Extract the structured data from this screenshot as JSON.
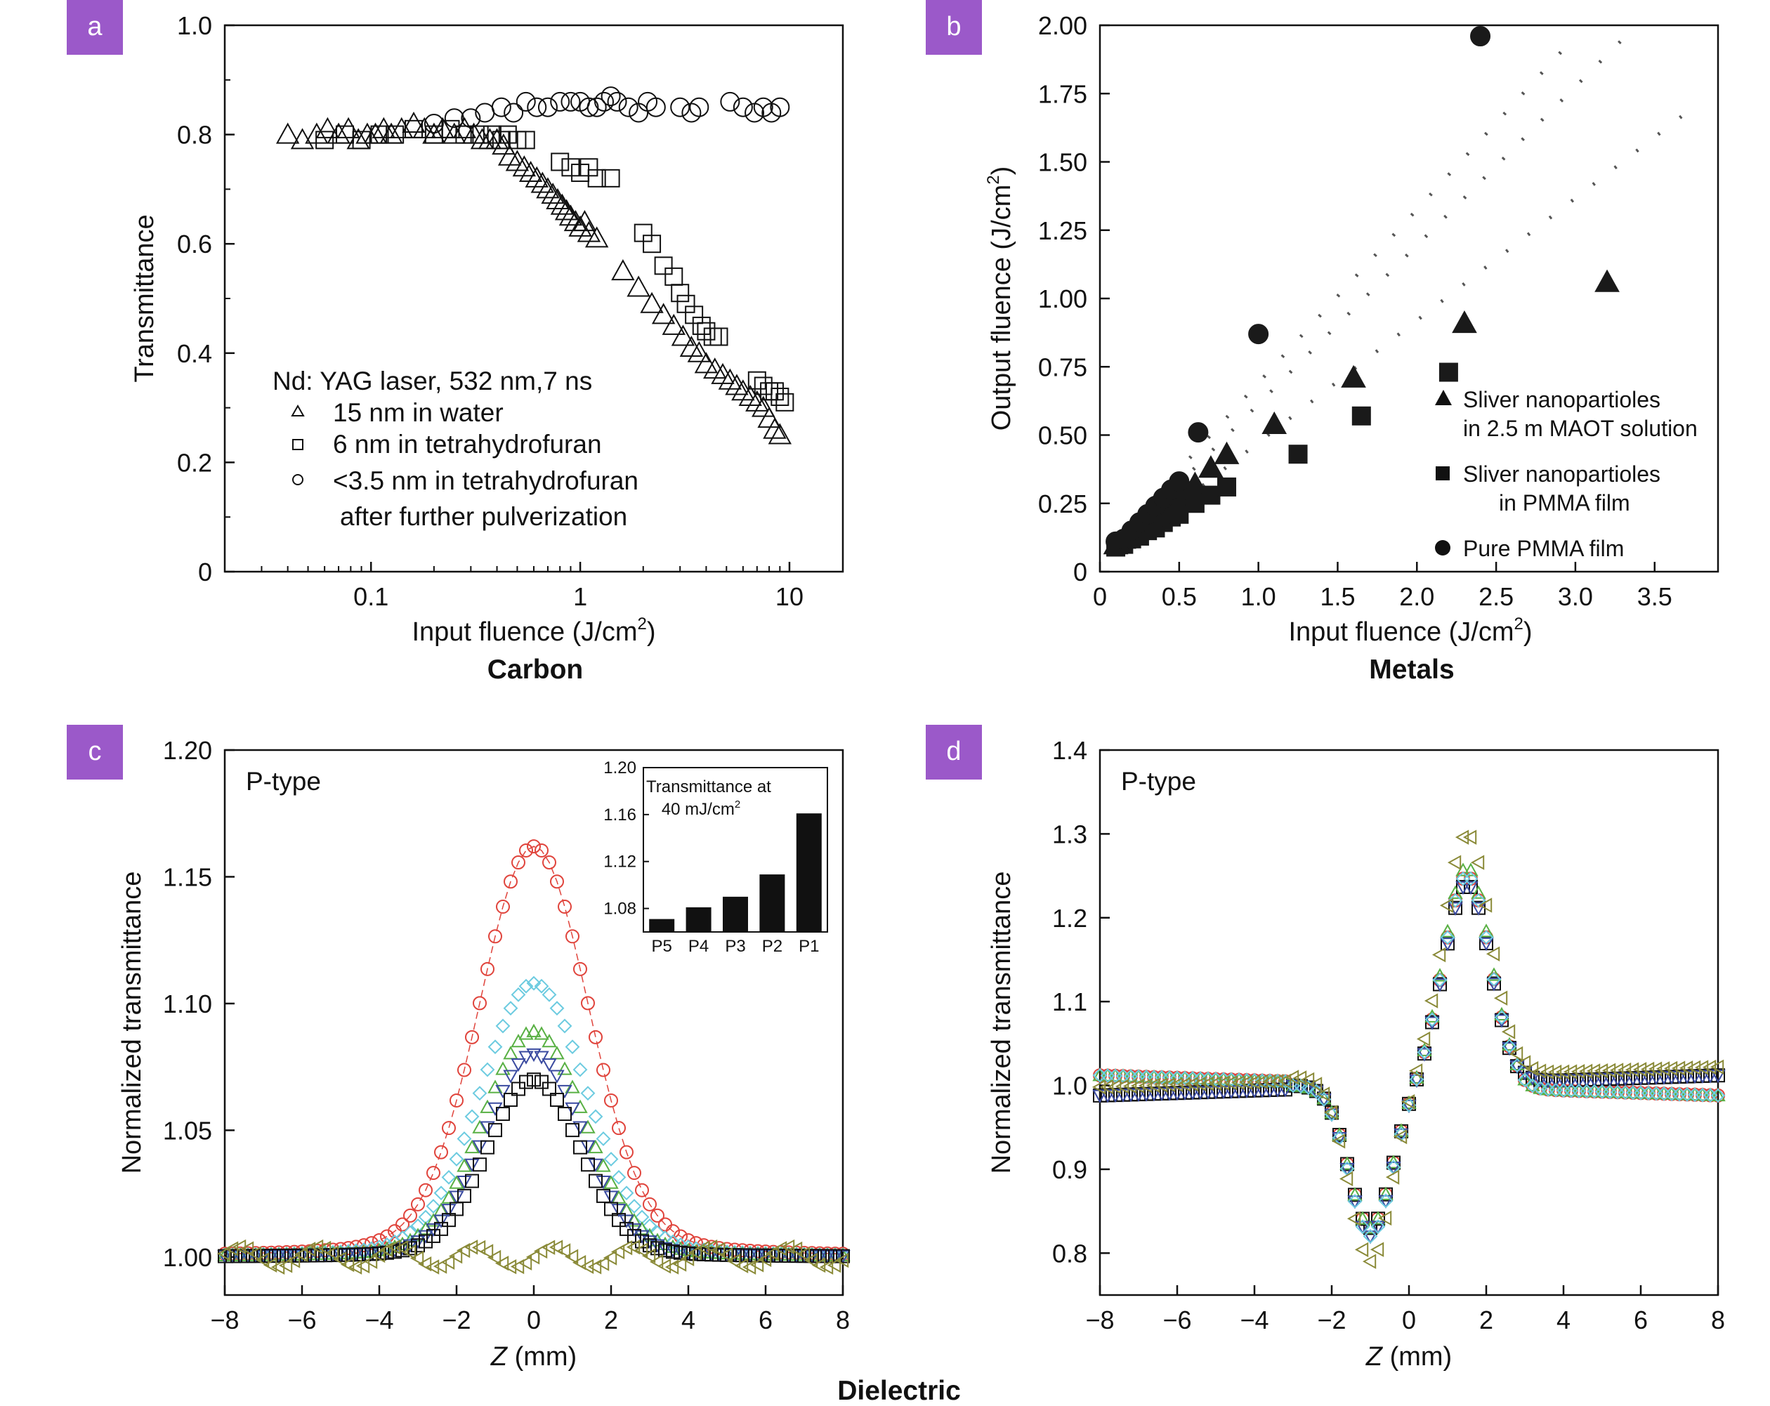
{
  "panels": {
    "a": {
      "tag": "a",
      "caption": "Carbon",
      "xlabel_main": "Input fluence (J/cm",
      "xlabel_sup": "2",
      "xlabel_end": ")",
      "ylabel": "Transmittance",
      "legend_title": "Nd: YAG laser, 532 nm,7 ns",
      "legend": [
        "15 nm in water",
        "6 nm in tetrahydrofuran",
        "<3.5 nm in tetrahydrofuran",
        "after further pulverization"
      ],
      "xticks": [
        "0.1",
        "1",
        "10"
      ],
      "yticks": [
        "0",
        "0.2",
        "0.4",
        "0.6",
        "0.8",
        "1.0"
      ]
    },
    "b": {
      "tag": "b",
      "caption": "Metals",
      "xlabel_main": "Input fluence (J/cm",
      "xlabel_sup": "2",
      "xlabel_end": ")",
      "ylabel_main": "Output fluence (J/cm",
      "ylabel_sup": "2",
      "ylabel_end": ")",
      "legend": [
        "Sliver nanopartioles",
        "in 2.5 m MAOT solution",
        "Sliver nanopartioles",
        "in PMMA film",
        "Pure PMMA film"
      ],
      "xticks": [
        "0",
        "0.5",
        "1.0",
        "1.5",
        "2.0",
        "2.5",
        "3.0",
        "3.5"
      ],
      "yticks": [
        "0",
        "0.25",
        "0.50",
        "0.75",
        "1.00",
        "1.25",
        "1.50",
        "1.75",
        "2.00"
      ]
    },
    "c": {
      "tag": "c",
      "label": "P-type",
      "xlabel_italic": "Z",
      "xlabel_rest": " (mm)",
      "ylabel": "Normalized transmittance",
      "xticks": [
        "−8",
        "−6",
        "−4",
        "−2",
        "0",
        "2",
        "4",
        "6",
        "8"
      ],
      "yticks": [
        "1.00",
        "1.05",
        "1.10",
        "1.15",
        "1.20"
      ],
      "inset": {
        "title1": "Transmittance at",
        "title2_main": "40 mJ/cm",
        "title2_sup": "2",
        "yticks": [
          "1.08",
          "1.12",
          "1.16",
          "1.20"
        ],
        "categories": [
          "P5",
          "P4",
          "P3",
          "P2",
          "P1"
        ]
      }
    },
    "d": {
      "tag": "d",
      "label": "P-type",
      "xlabel_italic": "Z",
      "xlabel_rest": " (mm)",
      "ylabel": "Normalized transmittance",
      "xticks": [
        "−8",
        "−6",
        "−4",
        "−2",
        "0",
        "2",
        "4",
        "6",
        "8"
      ],
      "yticks": [
        "0.8",
        "0.9",
        "1.0",
        "1.1",
        "1.2",
        "1.3",
        "1.4"
      ]
    },
    "bottom_caption": "Dielectric"
  },
  "colors": {
    "tag_bg": "#9b59c9",
    "red": "#e0443c",
    "cyan": "#6ccbe0",
    "green": "#58b043",
    "navy": "#3a4aa0",
    "olive": "#8a8a38",
    "black": "#111111"
  },
  "chart_data": [
    {
      "type": "scatter",
      "panel": "a",
      "x_scale": "log",
      "xlim": [
        0.02,
        18
      ],
      "ylim": [
        0,
        1.0
      ],
      "series": [
        {
          "name": "15 nm in water",
          "marker": "triangle",
          "x": [
            0.04,
            0.047,
            0.055,
            0.062,
            0.07,
            0.078,
            0.087,
            0.096,
            0.105,
            0.115,
            0.125,
            0.14,
            0.16,
            0.18,
            0.2,
            0.22,
            0.25,
            0.28,
            0.31,
            0.34,
            0.37,
            0.4,
            0.43,
            0.46,
            0.5,
            0.54,
            0.58,
            0.62,
            0.66,
            0.7,
            0.74,
            0.78,
            0.82,
            0.86,
            0.9,
            0.95,
            1.0,
            1.05,
            1.1,
            1.2,
            1.6,
            1.9,
            2.2,
            2.5,
            2.8,
            3.1,
            3.4,
            3.7,
            4.0,
            4.4,
            4.8,
            5.2,
            5.6,
            6.0,
            6.5,
            7.0,
            7.5,
            8.0,
            8.5,
            9.0
          ],
          "y": [
            0.8,
            0.79,
            0.8,
            0.81,
            0.8,
            0.81,
            0.79,
            0.8,
            0.8,
            0.81,
            0.8,
            0.81,
            0.82,
            0.81,
            0.8,
            0.81,
            0.8,
            0.81,
            0.8,
            0.79,
            0.79,
            0.79,
            0.78,
            0.76,
            0.75,
            0.74,
            0.73,
            0.72,
            0.71,
            0.7,
            0.69,
            0.68,
            0.67,
            0.66,
            0.65,
            0.64,
            0.63,
            0.64,
            0.62,
            0.61,
            0.55,
            0.52,
            0.49,
            0.47,
            0.45,
            0.43,
            0.41,
            0.4,
            0.38,
            0.37,
            0.36,
            0.35,
            0.34,
            0.33,
            0.32,
            0.31,
            0.3,
            0.28,
            0.26,
            0.25
          ]
        },
        {
          "name": "6 nm in tetrahydrofuran",
          "marker": "square",
          "x": [
            0.06,
            0.075,
            0.09,
            0.11,
            0.13,
            0.16,
            0.2,
            0.24,
            0.28,
            0.33,
            0.38,
            0.42,
            0.45,
            0.5,
            0.55,
            0.8,
            0.9,
            1.0,
            1.1,
            1.2,
            1.4,
            2.0,
            2.2,
            2.5,
            2.8,
            3.0,
            3.2,
            3.5,
            3.8,
            4.0,
            4.3,
            4.6,
            7.0,
            7.5,
            8.0,
            8.5,
            9.0,
            9.5
          ],
          "y": [
            0.79,
            0.8,
            0.79,
            0.8,
            0.8,
            0.81,
            0.8,
            0.81,
            0.8,
            0.8,
            0.8,
            0.79,
            0.8,
            0.79,
            0.79,
            0.75,
            0.74,
            0.73,
            0.74,
            0.72,
            0.72,
            0.62,
            0.6,
            0.56,
            0.54,
            0.51,
            0.49,
            0.47,
            0.45,
            0.44,
            0.43,
            0.43,
            0.35,
            0.34,
            0.33,
            0.33,
            0.32,
            0.31
          ]
        },
        {
          "name": "<3.5 nm in tetrahydrofuran after further pulverization",
          "marker": "circle",
          "x": [
            0.2,
            0.25,
            0.3,
            0.35,
            0.42,
            0.48,
            0.55,
            0.62,
            0.7,
            0.8,
            0.9,
            1.0,
            1.1,
            1.2,
            1.3,
            1.4,
            1.5,
            1.7,
            1.9,
            2.1,
            2.3,
            3.0,
            3.4,
            3.7,
            5.2,
            6.0,
            6.8,
            7.5,
            8.2,
            9.0
          ],
          "y": [
            0.82,
            0.83,
            0.83,
            0.84,
            0.85,
            0.84,
            0.86,
            0.85,
            0.85,
            0.86,
            0.86,
            0.86,
            0.85,
            0.85,
            0.86,
            0.87,
            0.86,
            0.85,
            0.84,
            0.86,
            0.85,
            0.85,
            0.84,
            0.85,
            0.86,
            0.85,
            0.84,
            0.85,
            0.84,
            0.85
          ]
        }
      ]
    },
    {
      "type": "scatter",
      "panel": "b",
      "xlim": [
        0,
        3.9
      ],
      "ylim": [
        0,
        2.0
      ],
      "series": [
        {
          "name": "Sliver nanopartioles in 2.5 m MAOT solution",
          "marker": "triangle",
          "x": [
            0.1,
            0.15,
            0.2,
            0.25,
            0.3,
            0.35,
            0.4,
            0.45,
            0.5,
            0.55,
            0.6,
            0.7,
            0.8,
            1.1,
            1.6,
            2.3,
            3.2
          ],
          "y": [
            0.1,
            0.12,
            0.15,
            0.18,
            0.2,
            0.22,
            0.25,
            0.27,
            0.28,
            0.3,
            0.32,
            0.38,
            0.43,
            0.54,
            0.71,
            0.91,
            1.06
          ]
        },
        {
          "name": "Sliver nanopartioles in PMMA film",
          "marker": "square",
          "x": [
            0.1,
            0.15,
            0.2,
            0.25,
            0.3,
            0.35,
            0.4,
            0.45,
            0.5,
            0.6,
            0.7,
            0.8,
            1.25,
            1.65,
            2.2
          ],
          "y": [
            0.09,
            0.1,
            0.12,
            0.13,
            0.15,
            0.16,
            0.18,
            0.2,
            0.21,
            0.25,
            0.28,
            0.31,
            0.43,
            0.57,
            0.73
          ]
        },
        {
          "name": "Pure PMMA film",
          "marker": "circle",
          "x": [
            0.1,
            0.15,
            0.2,
            0.25,
            0.3,
            0.35,
            0.4,
            0.45,
            0.5,
            0.62,
            1.0,
            2.4
          ],
          "y": [
            0.11,
            0.12,
            0.15,
            0.18,
            0.21,
            0.24,
            0.27,
            0.3,
            0.33,
            0.51,
            0.87,
            1.96
          ]
        }
      ],
      "dotted_lines": [
        {
          "x": [
            0.1,
            3.0
          ],
          "y": [
            0.12,
            1.96
          ]
        },
        {
          "x": [
            0.1,
            3.3
          ],
          "y": [
            0.09,
            1.95
          ]
        },
        {
          "x": [
            0.1,
            3.7
          ],
          "y": [
            0.07,
            1.68
          ]
        }
      ]
    },
    {
      "type": "scatter",
      "panel": "c",
      "xlim": [
        -8,
        8
      ],
      "ylim": [
        0.985,
        1.2
      ],
      "series": [
        {
          "color": "red",
          "marker": "circle",
          "peak": 1.162,
          "width": 1.4,
          "tail": 0.018
        },
        {
          "color": "cyan",
          "marker": "diamond",
          "peak": 1.108,
          "width": 1.35,
          "tail": 0.012
        },
        {
          "color": "green",
          "marker": "triangle",
          "peak": 1.089,
          "width": 1.3,
          "tail": 0.008
        },
        {
          "color": "navy",
          "marker": "triangle-down",
          "peak": 1.08,
          "width": 1.25,
          "tail": 0.006
        },
        {
          "color": "black",
          "marker": "square",
          "peak": 1.07,
          "width": 1.2,
          "tail": 0.005
        },
        {
          "color": "olive",
          "marker": "triangle-left",
          "peak": 1.0,
          "width": 1.0,
          "tail": 0
        }
      ],
      "inset": {
        "type": "bar",
        "categories": [
          "P5",
          "P4",
          "P3",
          "P2",
          "P1"
        ],
        "values": [
          1.071,
          1.081,
          1.09,
          1.109,
          1.161
        ],
        "ylim": [
          1.06,
          1.2
        ]
      }
    },
    {
      "type": "scatter",
      "panel": "d",
      "xlim": [
        -8,
        8
      ],
      "ylim": [
        0.75,
        1.4
      ],
      "series": [
        {
          "color": "red",
          "marker": "circle",
          "valley": 0.83,
          "peak": 1.25
        },
        {
          "color": "black",
          "marker": "square",
          "valley": 0.83,
          "peak": 1.24
        },
        {
          "color": "green",
          "marker": "triangle",
          "valley": 0.83,
          "peak": 1.26
        },
        {
          "color": "navy",
          "marker": "triangle-down",
          "valley": 0.82,
          "peak": 1.24
        },
        {
          "color": "cyan",
          "marker": "diamond",
          "valley": 0.82,
          "peak": 1.25
        },
        {
          "color": "olive",
          "marker": "triangle-left",
          "valley": 0.78,
          "peak": 1.29
        }
      ]
    }
  ]
}
